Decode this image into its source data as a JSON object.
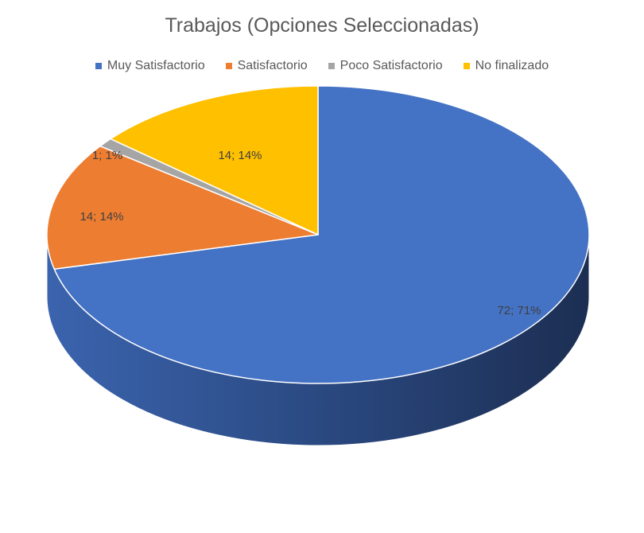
{
  "chart_data": {
    "type": "pie",
    "title": "Trabajos (Opciones Seleccionadas)",
    "categories": [
      "Muy Satisfactorio",
      "Satisfactorio",
      "Poco Satisfactorio",
      "No finalizado"
    ],
    "values": [
      72,
      14,
      1,
      14
    ],
    "percent_labels": [
      "72; 71%",
      "14; 14%",
      "1; 1%",
      "14; 14%"
    ],
    "colors": [
      "#4472C4",
      "#ED7D31",
      "#A5A5A5",
      "#FFC000"
    ],
    "legend_position": "top",
    "style": "3d-pie"
  }
}
